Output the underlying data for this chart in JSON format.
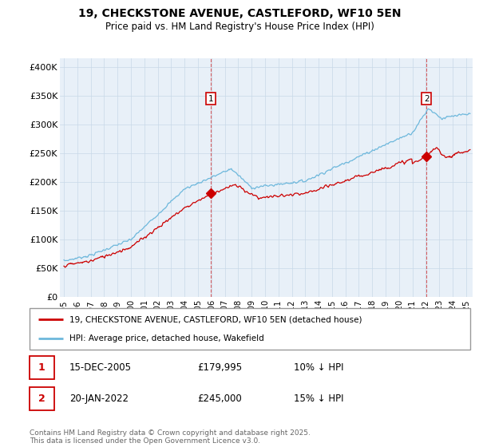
{
  "title": "19, CHECKSTONE AVENUE, CASTLEFORD, WF10 5EN",
  "subtitle": "Price paid vs. HM Land Registry's House Price Index (HPI)",
  "ylabel_ticks": [
    "£0",
    "£50K",
    "£100K",
    "£150K",
    "£200K",
    "£250K",
    "£300K",
    "£350K",
    "£400K"
  ],
  "ytick_values": [
    0,
    50000,
    100000,
    150000,
    200000,
    250000,
    300000,
    350000,
    400000
  ],
  "ylim": [
    0,
    415000
  ],
  "sale1_x": 2005.96,
  "sale1_y": 179995,
  "sale2_x": 2022.05,
  "sale2_y": 245000,
  "hpi_color": "#6eb8dc",
  "sale_color": "#cc0000",
  "vline_color": "#cc0000",
  "legend_label_red": "19, CHECKSTONE AVENUE, CASTLEFORD, WF10 5EN (detached house)",
  "legend_label_blue": "HPI: Average price, detached house, Wakefield",
  "footer": "Contains HM Land Registry data © Crown copyright and database right 2025.\nThis data is licensed under the Open Government Licence v3.0.",
  "xlim_start": 1994.7,
  "xlim_end": 2025.5,
  "xticks": [
    1995,
    1996,
    1997,
    1998,
    1999,
    2000,
    2001,
    2002,
    2003,
    2004,
    2005,
    2006,
    2007,
    2008,
    2009,
    2010,
    2011,
    2012,
    2013,
    2014,
    2015,
    2016,
    2017,
    2018,
    2019,
    2020,
    2021,
    2022,
    2023,
    2024,
    2025
  ],
  "bg_color": "#e8f0f8",
  "noise_scale_hpi": 1800,
  "noise_scale_red": 2200
}
